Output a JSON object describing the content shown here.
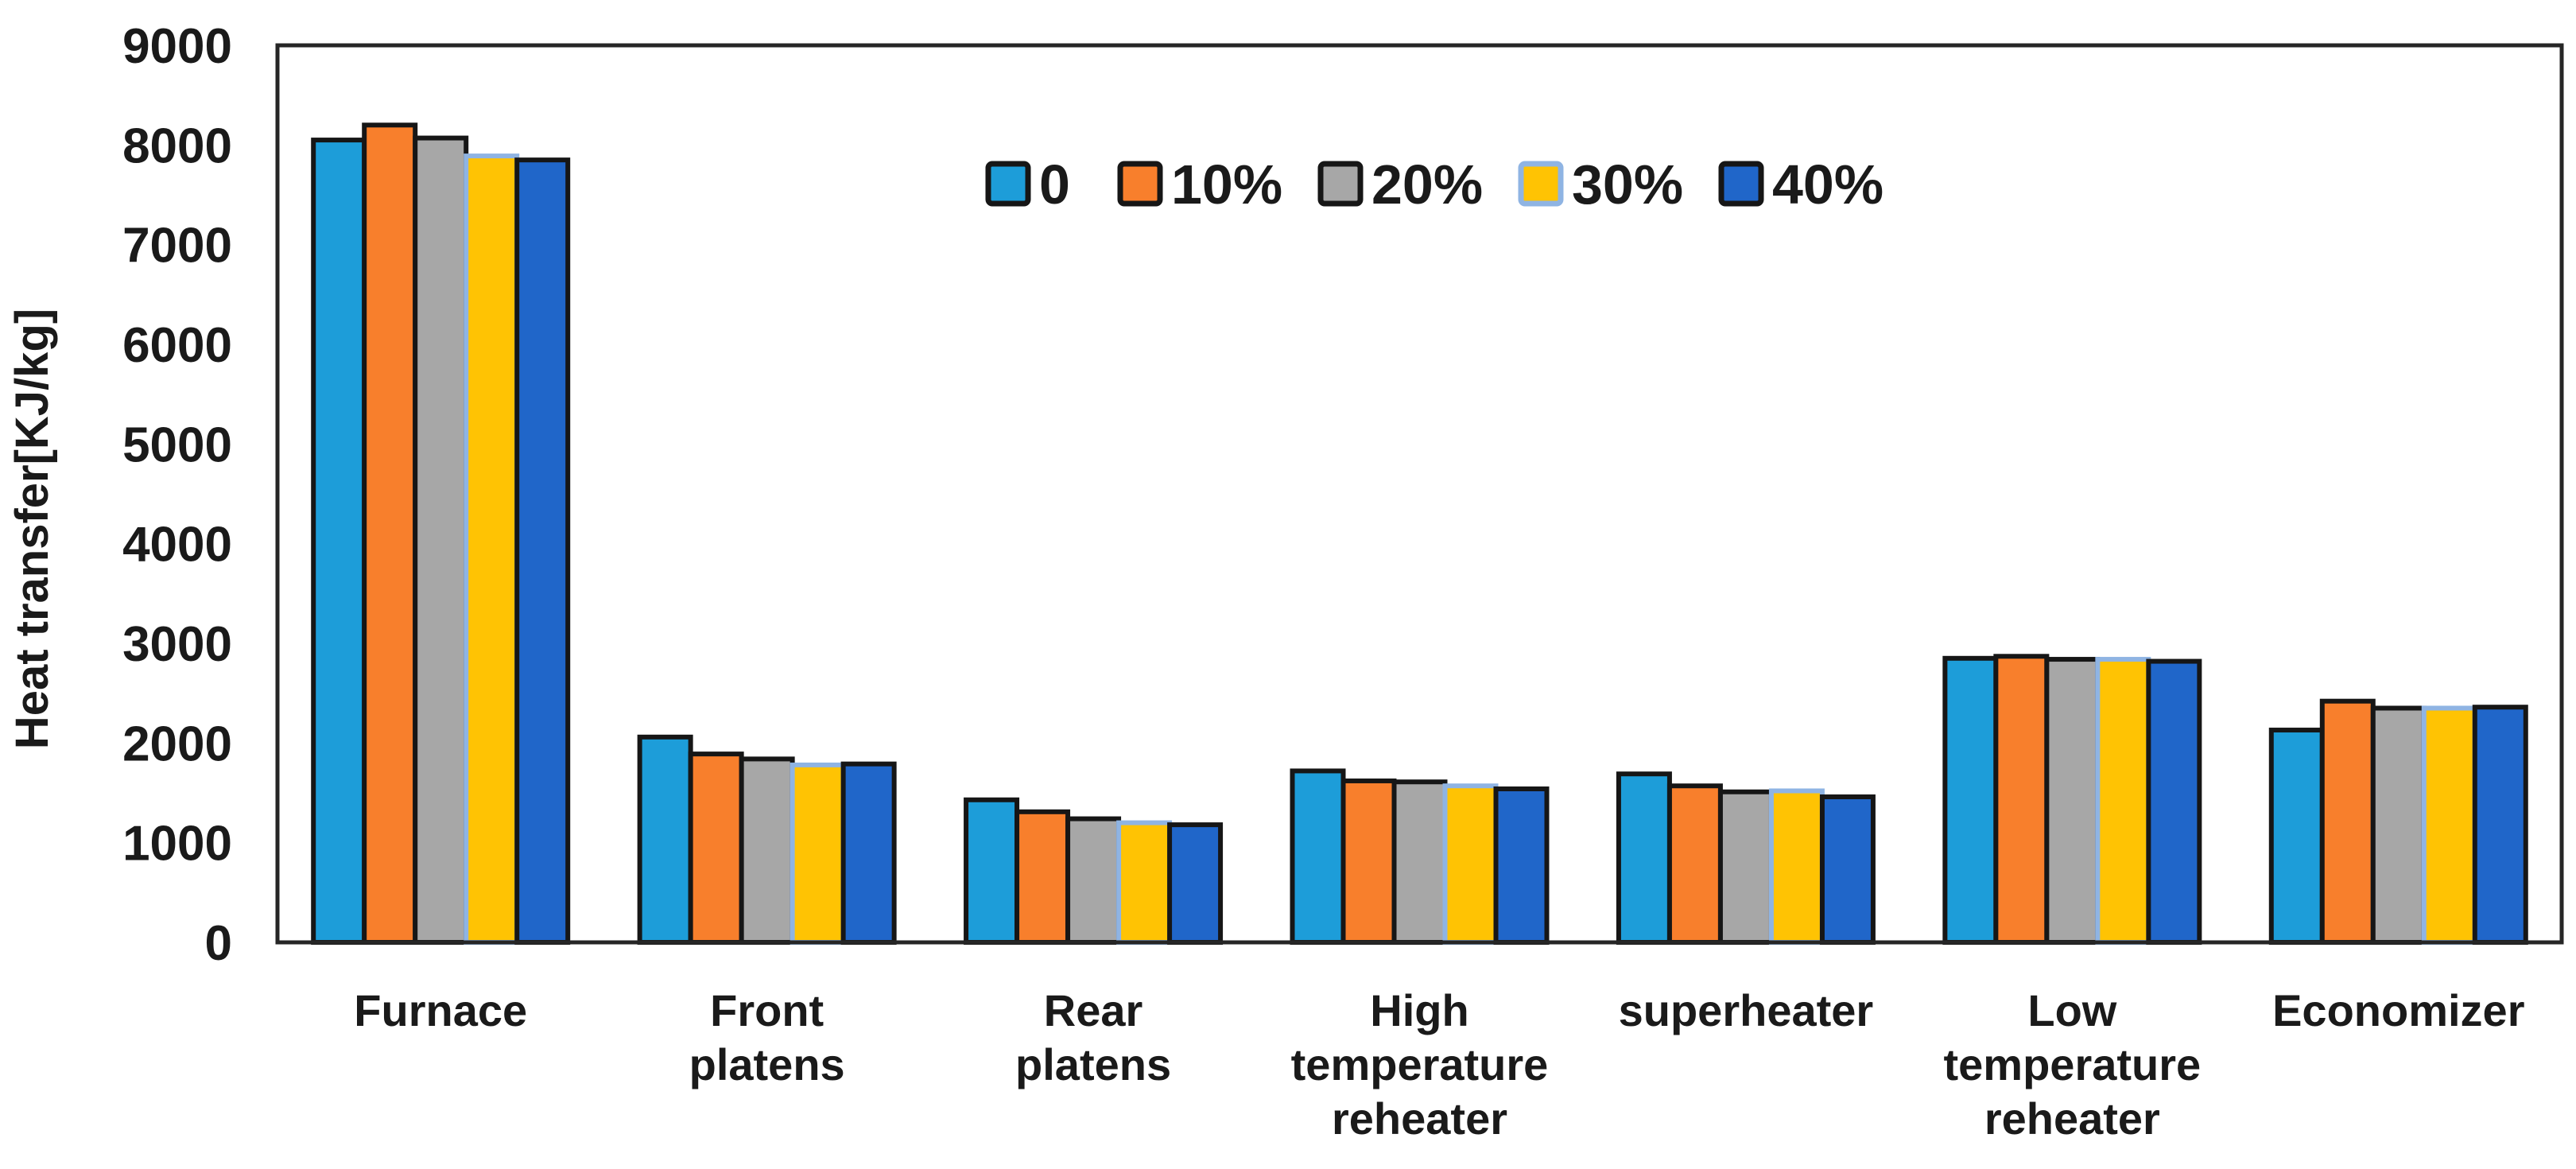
{
  "chart_data": {
    "type": "bar",
    "title": "",
    "xlabel": "",
    "ylabel": "Heat transfer[KJ/kg]",
    "ylim": [
      0,
      9000
    ],
    "ytick_step": 1000,
    "yticks": [
      0,
      1000,
      2000,
      3000,
      4000,
      5000,
      6000,
      7000,
      8000,
      9000
    ],
    "grid": false,
    "legend_position": "top-center-inside",
    "legend_labels": [
      "0",
      "10%",
      "20%",
      "30%",
      "40%"
    ],
    "categories": [
      "Furnace",
      "Front platens",
      "Rear platens",
      "High temperature reheater",
      "superheater",
      "Low temperature reheater",
      "Economizer"
    ],
    "category_label_lines": [
      [
        "Furnace"
      ],
      [
        "Front",
        "platens"
      ],
      [
        "Rear",
        "platens"
      ],
      [
        "High",
        "temperature",
        "reheater"
      ],
      [
        "superheater"
      ],
      [
        "Low",
        "temperature",
        "reheater"
      ],
      [
        "Economizer"
      ]
    ],
    "series": [
      {
        "name": "0",
        "fill": "#1D9DD9",
        "border": "#161616",
        "values": [
          8050,
          2060,
          1430,
          1720,
          1690,
          2850,
          2130
        ]
      },
      {
        "name": "10%",
        "fill": "#F87F2C",
        "border": "#161616",
        "values": [
          8200,
          1890,
          1310,
          1620,
          1570,
          2870,
          2420
        ]
      },
      {
        "name": "20%",
        "fill": "#A7A7A7",
        "border": "#161616",
        "values": [
          8070,
          1840,
          1240,
          1610,
          1510,
          2840,
          2350
        ]
      },
      {
        "name": "30%",
        "fill": "#FFC303",
        "border": "#8FB4E3",
        "values": [
          7890,
          1780,
          1200,
          1570,
          1520,
          2840,
          2350
        ]
      },
      {
        "name": "40%",
        "fill": "#2066C9",
        "border": "#161616",
        "values": [
          7850,
          1790,
          1180,
          1540,
          1460,
          2820,
          2360
        ]
      }
    ],
    "colors": {
      "axis_line": "#262626",
      "text": "#1A1A1A",
      "background": "#FFFFFF"
    }
  }
}
